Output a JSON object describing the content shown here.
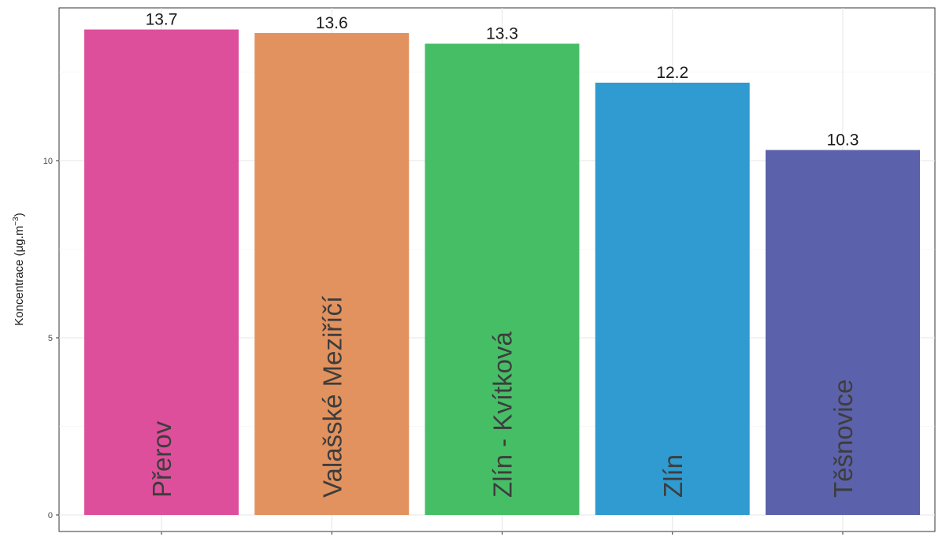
{
  "chart_data": {
    "type": "bar",
    "title": "",
    "xlabel": "",
    "ylabel": "Koncentrace (μg.m",
    "ylabel_superscript": "−3",
    "ylabel_close": ")",
    "categories": [
      "Přerov",
      "Valašské Meziříčí",
      "Zlín - Kvítková",
      "Zlín",
      "Těšnovice"
    ],
    "values": [
      13.7,
      13.6,
      13.3,
      12.2,
      10.3
    ],
    "value_labels": [
      "13.7",
      "13.6",
      "13.3",
      "12.2",
      "10.3"
    ],
    "colors": [
      "#dd4f9b",
      "#e2925e",
      "#46be66",
      "#2f9bd0",
      "#5c61ab"
    ],
    "ylim": [
      0,
      14.2
    ],
    "yticks": [
      0,
      5,
      10
    ],
    "ytick_labels": [
      "0",
      "5",
      "10"
    ],
    "grid": true,
    "legend": "none"
  }
}
